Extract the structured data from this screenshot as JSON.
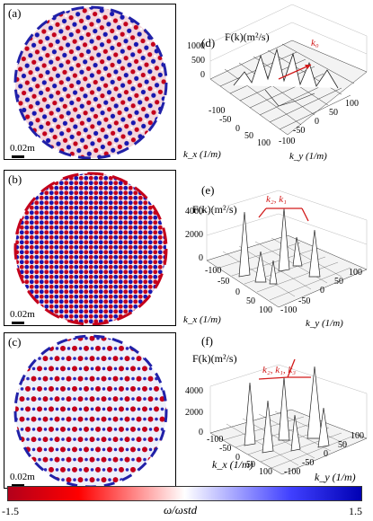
{
  "panels_left": [
    {
      "label": "(a)",
      "scale": "0.02m"
    },
    {
      "label": "(b)",
      "scale": "0.02m"
    },
    {
      "label": "(c)",
      "scale": "0.02m"
    }
  ],
  "panels_right": [
    {
      "label": "(d)",
      "zlabel": "F(k)(m²/s)",
      "zticks": [
        "1000",
        "500",
        "0"
      ],
      "kx_ticks": [
        "-100",
        "-50",
        "0",
        "50",
        "100"
      ],
      "ky_ticks": [
        "-100",
        "-50",
        "0",
        "50",
        "100"
      ],
      "kx_label": "k_x (1/m)",
      "ky_label": "k_y (1/m)",
      "annotation": "k₀"
    },
    {
      "label": "(e)",
      "zlabel": "F(k)(m²/s)",
      "zticks": [
        "4000",
        "2000",
        "0"
      ],
      "kx_ticks": [
        "-100",
        "-50",
        "0",
        "50",
        "100"
      ],
      "ky_ticks": [
        "-100",
        "-50",
        "0",
        "50",
        "100"
      ],
      "kx_label": "k_x (1/m)",
      "ky_label": "k_y (1/m)",
      "annotation": "k₂, k₁"
    },
    {
      "label": "(f)",
      "zlabel": "F(k)(m²/s)",
      "zticks": [
        "4000",
        "2000",
        "0"
      ],
      "kx_ticks": [
        "-100",
        "-50",
        "0",
        "50",
        "100"
      ],
      "ky_ticks": [
        "-100",
        "-50",
        "0",
        "50",
        "100"
      ],
      "kx_label": "k_x (1/m)",
      "ky_label": "k_y (1/m)",
      "annotation": "k₂, k₁, k₃"
    }
  ],
  "colorbar": {
    "min": "-1.5",
    "max": "1.5",
    "label": "ω/ωstd"
  },
  "colors": {
    "red": "#ff0000",
    "blue": "#0000ff",
    "annotation": "#d21b1b"
  }
}
